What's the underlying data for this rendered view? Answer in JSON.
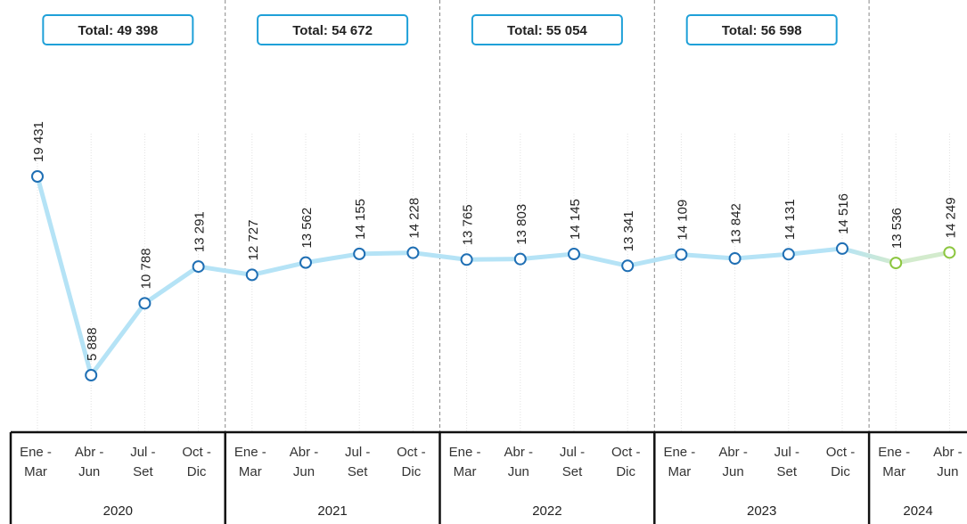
{
  "chart_data": {
    "type": "line",
    "groups": [
      {
        "name": "2020",
        "annotation": "Total: 49 398",
        "line_color": "#b5e3f6",
        "marker_color": "#1f6fb4",
        "categories": [
          "Ene - Mar",
          "Abr - Jun",
          "Jul - Set",
          "Oct - Dic"
        ],
        "values": [
          19431,
          5888,
          10788,
          13291
        ],
        "value_labels": [
          "19 431",
          "5 888",
          "10 788",
          "13 291"
        ]
      },
      {
        "name": "2021",
        "annotation": "Total: 54 672",
        "line_color": "#b5e3f6",
        "marker_color": "#1f6fb4",
        "categories": [
          "Ene - Mar",
          "Abr - Jun",
          "Jul - Set",
          "Oct - Dic"
        ],
        "values": [
          12727,
          13562,
          14155,
          14228
        ],
        "value_labels": [
          "12 727",
          "13 562",
          "14 155",
          "14 228"
        ]
      },
      {
        "name": "2022",
        "annotation": "Total: 55 054",
        "line_color": "#b5e3f6",
        "marker_color": "#1f6fb4",
        "categories": [
          "Ene - Mar",
          "Abr - Jun",
          "Jul - Set",
          "Oct - Dic"
        ],
        "values": [
          13765,
          13803,
          14145,
          13341
        ],
        "value_labels": [
          "13 765",
          "13 803",
          "14 145",
          "13 341"
        ]
      },
      {
        "name": "2023",
        "annotation": "Total: 56 598",
        "line_color": "#b5e3f6",
        "marker_color": "#1f6fb4",
        "categories": [
          "Ene - Mar",
          "Abr - Jun",
          "Jul - Set",
          "Oct - Dic"
        ],
        "values": [
          14109,
          13842,
          14131,
          14516
        ],
        "value_labels": [
          "14 109",
          "13 842",
          "14 131",
          "14 516"
        ]
      },
      {
        "name": "2024",
        "line_color": "#d3ebcd",
        "marker_color": "#8cc63f",
        "categories": [
          "Ene - Mar",
          "Abr - Jun"
        ],
        "values": [
          13536,
          14249
        ],
        "value_labels": [
          "13 536",
          "14 249"
        ]
      }
    ]
  }
}
